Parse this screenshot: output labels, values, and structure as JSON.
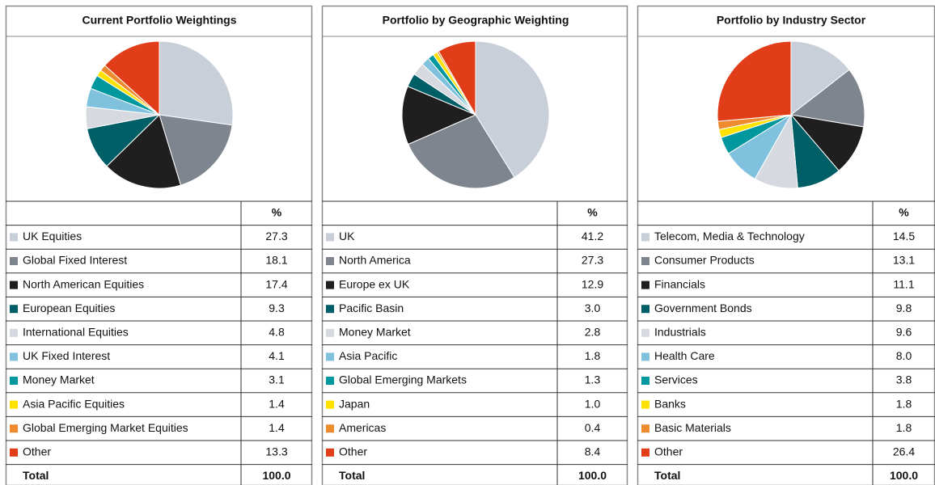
{
  "chart_data": [
    {
      "type": "pie",
      "title": "Current Portfolio Weightings",
      "column_header": "%",
      "categories": [
        "UK Equities",
        "Global Fixed Interest",
        "North American Equities",
        "European Equities",
        "International Equities",
        "UK Fixed Interest",
        "Money Market",
        "Asia Pacific Equities",
        "Global Emerging Market Equities",
        "Other"
      ],
      "values": [
        27.3,
        18.1,
        17.4,
        9.3,
        4.8,
        4.1,
        3.1,
        1.4,
        1.4,
        13.3
      ],
      "value_labels": [
        "27.3",
        "18.1",
        "17.4",
        "9.3",
        "4.8",
        "4.1",
        "3.1",
        "1.4",
        "1.4",
        "13.3"
      ],
      "colors": [
        "#c8cfd9",
        "#7e858f",
        "#1f1f1f",
        "#005e66",
        "#d6d9df",
        "#80c1dd",
        "#00989e",
        "#ffe100",
        "#f08a2e",
        "#e03d18"
      ],
      "total_label": "Total",
      "total": "100.0"
    },
    {
      "type": "pie",
      "title": "Portfolio by Geographic Weighting",
      "column_header": "%",
      "categories": [
        "UK",
        "North America",
        "Europe ex UK",
        "Pacific Basin",
        "Money Market",
        "Asia Pacific",
        "Global Emerging Markets",
        "Japan",
        "Americas",
        "Other"
      ],
      "values": [
        41.2,
        27.3,
        12.9,
        3.0,
        2.8,
        1.8,
        1.3,
        1.0,
        0.4,
        8.4
      ],
      "value_labels": [
        "41.2",
        "27.3",
        "12.9",
        "3.0",
        "2.8",
        "1.8",
        "1.3",
        "1.0",
        "0.4",
        "8.4"
      ],
      "colors": [
        "#c8cfd9",
        "#7e858f",
        "#1f1f1f",
        "#005e66",
        "#d6d9df",
        "#80c1dd",
        "#00989e",
        "#ffe100",
        "#f08a2e",
        "#e03d18"
      ],
      "total_label": "Total",
      "total": "100.0"
    },
    {
      "type": "pie",
      "title": "Portfolio by Industry Sector",
      "column_header": "%",
      "categories": [
        "Telecom, Media & Technology",
        "Consumer Products",
        "Financials",
        "Government Bonds",
        "Industrials",
        "Health Care",
        "Services",
        "Banks",
        "Basic Materials",
        "Other"
      ],
      "values": [
        14.5,
        13.1,
        11.1,
        9.8,
        9.6,
        8.0,
        3.8,
        1.8,
        1.8,
        26.4
      ],
      "value_labels": [
        "14.5",
        "13.1",
        "11.1",
        "9.8",
        "9.6",
        "8.0",
        "3.8",
        "1.8",
        "1.8",
        "26.4"
      ],
      "colors": [
        "#c8cfd9",
        "#7e858f",
        "#1f1f1f",
        "#005e66",
        "#d6d9df",
        "#80c1dd",
        "#00989e",
        "#ffe100",
        "#f08a2e",
        "#e03d18"
      ],
      "total_label": "Total",
      "total": "100.0"
    }
  ]
}
